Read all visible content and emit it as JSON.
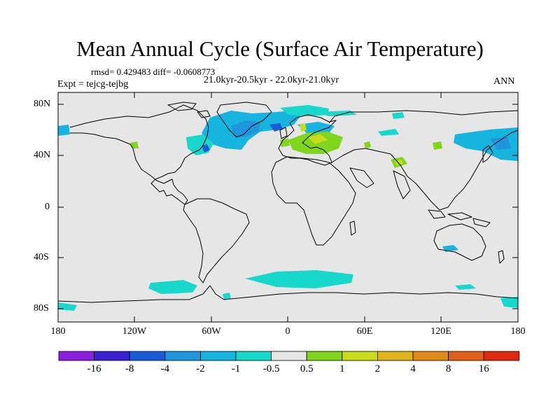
{
  "header": {
    "title": "Mean Annual Cycle (Surface Air Temperature)",
    "stats": "rmsd= 0.429483 diff= -0.0608773",
    "period": "21.0kyr-20.5kyr - 22.0kyr-21.0kyr",
    "experiment": "Expt = tejcg-tejbg",
    "season": "ANN"
  },
  "axes": {
    "y_ticks": [
      "80N",
      "40N",
      "0",
      "40S",
      "80S"
    ],
    "x_ticks": [
      "180",
      "120W",
      "60W",
      "0",
      "60E",
      "120E",
      "180"
    ]
  },
  "colorbar": {
    "labels": [
      "-16",
      "-8",
      "-4",
      "-2",
      "-1",
      "-0.5",
      "0.5",
      "1",
      "2",
      "4",
      "8",
      "16"
    ],
    "colors": [
      "#8b1fe0",
      "#3a20d0",
      "#1a5cd8",
      "#1f95dc",
      "#16b5e0",
      "#18d8cc",
      "#e6e6e6",
      "#7fd61c",
      "#c8dc1c",
      "#e0b41c",
      "#e08a1a",
      "#e0601a",
      "#e02a10"
    ]
  },
  "colors": {
    "land_background": "#e6e6e6",
    "cold_light": "#18d8cc",
    "cold_medium": "#16b5e0",
    "cold_strong": "#1f95dc",
    "cold_deep": "#1a5cd8",
    "warm_light": "#7fd61c",
    "warm_medium": "#c8dc1c"
  }
}
